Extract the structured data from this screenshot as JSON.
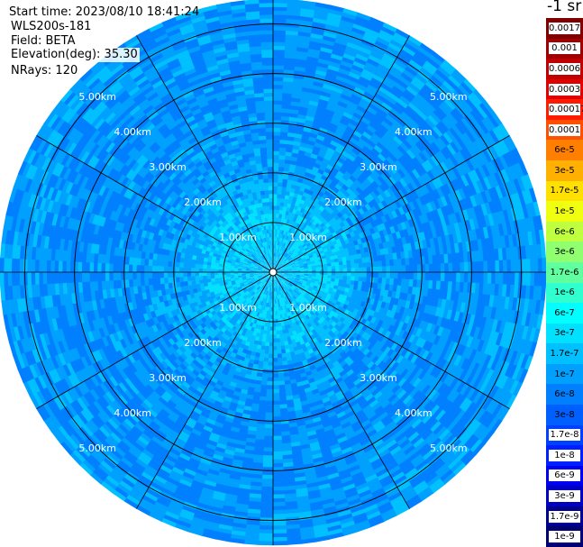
{
  "header": {
    "start_time": "Start time: 2023/08/10 18:41:24",
    "instrument": "WLS200s-181",
    "field": "Field: BETA",
    "elevation": "Elevation(deg): 35.30",
    "nrays": "NRays: 120"
  },
  "colorbar": {
    "units": "-1 sr",
    "labels": [
      "0.0017",
      "0.001",
      "0.0006",
      "0.0003",
      "0.00017",
      "0.0001",
      "6e-5",
      "3e-5",
      "1.7e-5",
      "1e-5",
      "6e-6",
      "3e-6",
      "1.7e-6",
      "1e-6",
      "6e-7",
      "3e-7",
      "1.7e-7",
      "1e-7",
      "6e-8",
      "3e-8",
      "1.7e-8",
      "1e-8",
      "6e-9",
      "3e-9",
      "1.7e-9",
      "1e-9"
    ],
    "colors": [
      "#800000",
      "#a00000",
      "#c00000",
      "#e00000",
      "#ff1a00",
      "#ff5000",
      "#ff8000",
      "#ffb000",
      "#ffe000",
      "#f0ff10",
      "#c0ff40",
      "#90ff70",
      "#60ffa0",
      "#30ffd0",
      "#00ffff",
      "#00e0ff",
      "#00c0ff",
      "#00a0ff",
      "#0080ff",
      "#0060ff",
      "#0040ff",
      "#0020ff",
      "#0000f0",
      "#0000c0",
      "#000090",
      "#000070"
    ]
  },
  "chart_data": {
    "type": "heatmap",
    "projection": "polar-ppi",
    "range_unit": "km",
    "max_range": 5.5,
    "nrays": 120,
    "range_ring_labels": [
      "1.00km",
      "2.00km",
      "3.00km",
      "4.00km",
      "5.00km"
    ],
    "range_rings_km": [
      1,
      2,
      3,
      4,
      5
    ],
    "radial_spokes_deg": [
      0,
      30,
      60,
      90,
      120,
      150,
      180,
      210,
      240,
      270,
      300,
      330
    ],
    "field": "BETA",
    "color_scale": "log",
    "value_range": [
      1e-09,
      0.0017
    ],
    "profile_by_range_km": [
      [
        0.0,
        2e-07
      ],
      [
        0.5,
        2e-07
      ],
      [
        1.0,
        2.2e-07
      ],
      [
        1.5,
        1.5e-07
      ],
      [
        2.0,
        1e-07
      ],
      [
        3.0,
        8e-08
      ],
      [
        4.0,
        8e-08
      ],
      [
        5.0,
        9e-08
      ],
      [
        5.5,
        1e-07
      ]
    ]
  }
}
